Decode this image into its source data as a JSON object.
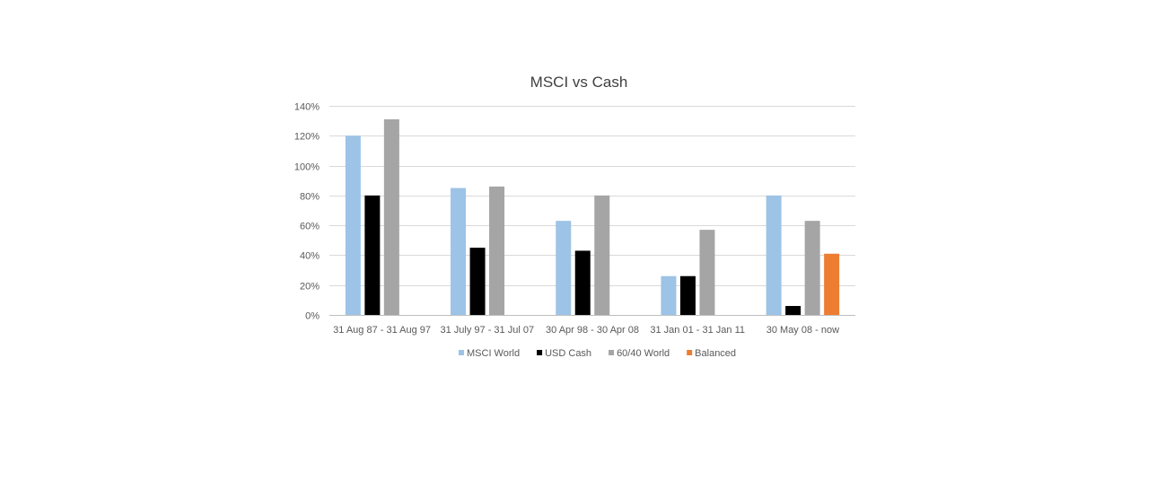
{
  "chart_data": {
    "type": "bar",
    "title": "MSCI vs Cash",
    "xlabel": "",
    "ylabel": "",
    "categories": [
      "31 Aug 87 - 31 Aug 97",
      "31 July 97 - 31 Jul 07",
      "30 Apr 98 - 30 Apr 08",
      "31 Jan 01 - 31 Jan 11",
      "30 May 08 - now"
    ],
    "series": [
      {
        "name": "MSCI World",
        "color": "#9DC3E6",
        "values": [
          120,
          85,
          63,
          26,
          80
        ]
      },
      {
        "name": "USD Cash",
        "color": "#000000",
        "values": [
          80,
          45,
          43,
          26,
          6
        ]
      },
      {
        "name": "60/40 World",
        "color": "#A5A5A5",
        "values": [
          131,
          86,
          80,
          57,
          63
        ]
      },
      {
        "name": "Balanced",
        "color": "#ED7D31",
        "values": [
          null,
          null,
          null,
          null,
          41
        ]
      }
    ],
    "ylim": [
      0,
      140
    ],
    "yticks": [
      0,
      20,
      40,
      60,
      80,
      100,
      120,
      140
    ],
    "y_tick_format": "percent",
    "grid": true,
    "legend_position": "bottom"
  }
}
